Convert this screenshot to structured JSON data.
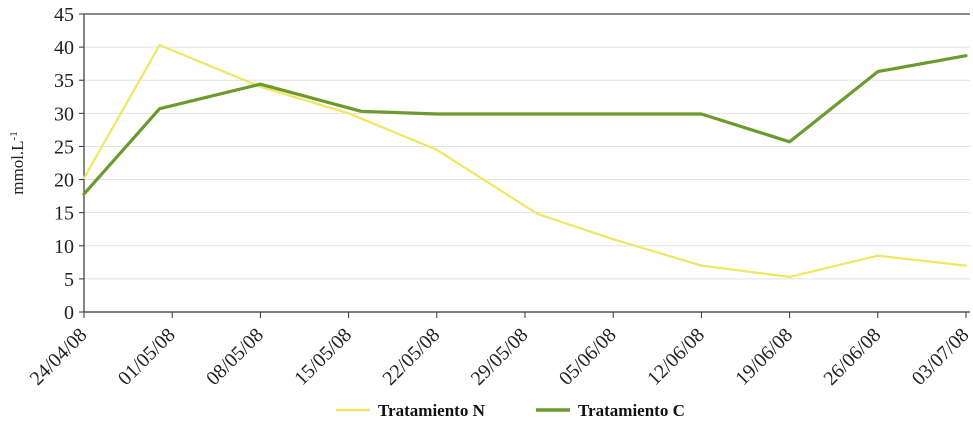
{
  "chart_data": {
    "type": "line",
    "ylabel": "mmol.L",
    "ylabel_sup": "-1",
    "ylim": [
      0,
      45
    ],
    "yticks": [
      0,
      5,
      10,
      15,
      20,
      25,
      30,
      35,
      40,
      45
    ],
    "grid": true,
    "legend_position": "bottom",
    "categories": [
      "24/04/08",
      "01/05/08",
      "08/05/08",
      "15/05/08",
      "22/05/08",
      "29/05/08",
      "05/06/08",
      "12/06/08",
      "19/06/08",
      "26/06/08",
      "03/07/08"
    ],
    "series": [
      {
        "name": "Tratamiento N",
        "color": "#f0e662",
        "points": [
          {
            "x": "24/04/08",
            "y": 20.2
          },
          {
            "x": "30/04/08",
            "y": 40.3
          },
          {
            "x": "08/05/08",
            "y": 34.0
          },
          {
            "x": "15/05/08",
            "y": 30.0
          },
          {
            "x": "22/05/08",
            "y": 24.5
          },
          {
            "x": "30/05/08",
            "y": 14.8
          },
          {
            "x": "05/06/08",
            "y": 11.0
          },
          {
            "x": "12/06/08",
            "y": 7.0
          },
          {
            "x": "19/06/08",
            "y": 5.3
          },
          {
            "x": "26/06/08",
            "y": 8.5
          },
          {
            "x": "03/07/08",
            "y": 7.0
          }
        ]
      },
      {
        "name": "Tratamiento C",
        "color": "#6b9a2e",
        "points": [
          {
            "x": "24/04/08",
            "y": 17.8
          },
          {
            "x": "30/04/08",
            "y": 30.7
          },
          {
            "x": "08/05/08",
            "y": 34.4
          },
          {
            "x": "16/05/08",
            "y": 30.3
          },
          {
            "x": "22/05/08",
            "y": 29.9
          },
          {
            "x": "30/05/08",
            "y": 29.9
          },
          {
            "x": "05/06/08",
            "y": 29.9
          },
          {
            "x": "12/06/08",
            "y": 29.9
          },
          {
            "x": "19/06/08",
            "y": 25.7
          },
          {
            "x": "26/06/08",
            "y": 36.3
          },
          {
            "x": "03/07/08",
            "y": 38.7
          }
        ]
      }
    ]
  }
}
